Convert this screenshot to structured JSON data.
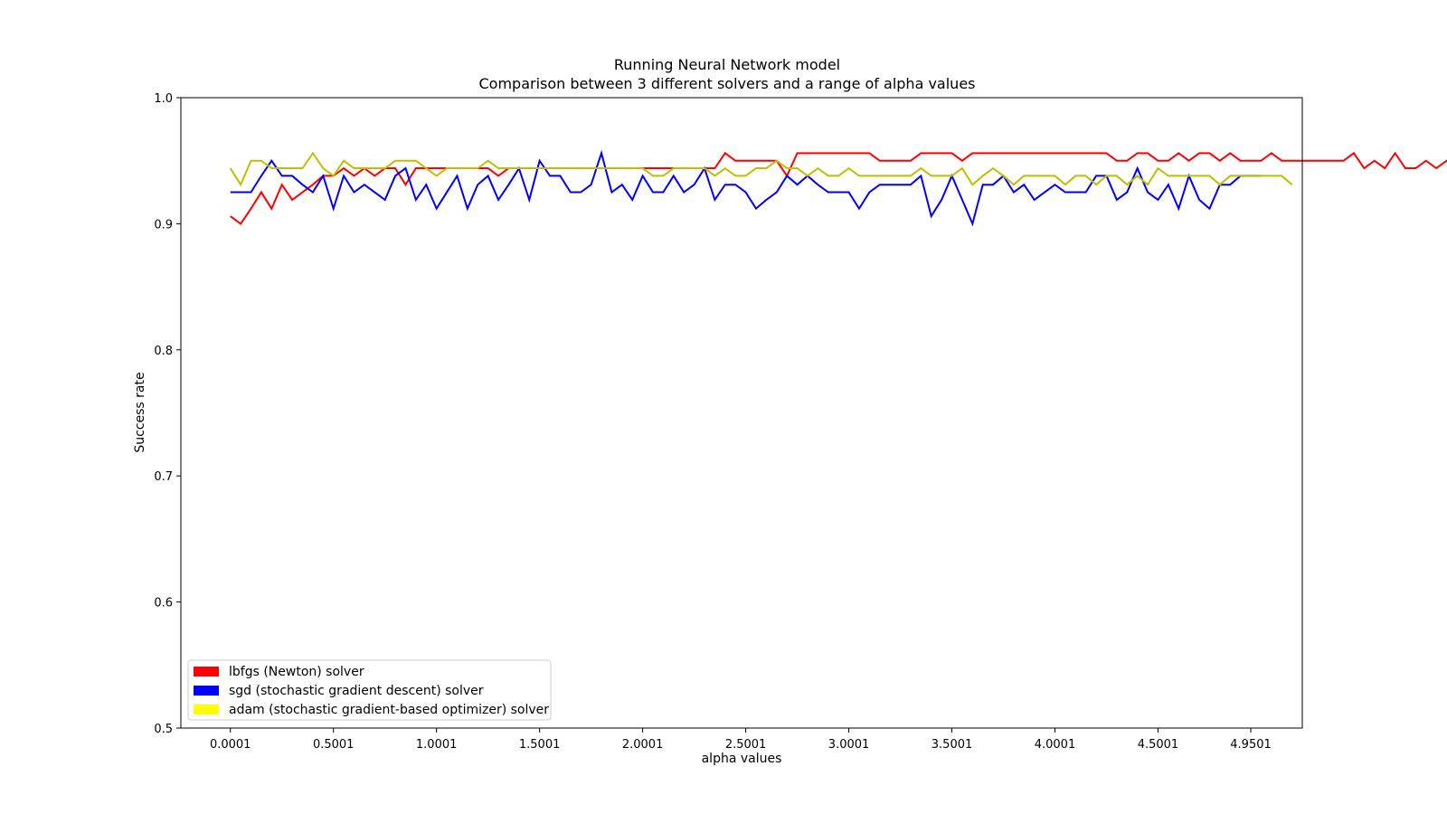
{
  "chart_data": {
    "type": "line",
    "title": "Running Neural Network model",
    "subtitle": "Comparison between 3 different solvers and a range of alpha values",
    "xlabel": "alpha values",
    "ylabel": "Success rate",
    "xlim": [
      -0.24,
      5.2
    ],
    "ylim": [
      0.5,
      1.0
    ],
    "xticks": [
      0.0001,
      0.5001,
      1.0001,
      1.5001,
      2.0001,
      2.5001,
      3.0001,
      3.5001,
      4.0001,
      4.5001,
      4.9501
    ],
    "xtick_labels": [
      "0.0001",
      "0.5001",
      "1.0001",
      "1.5001",
      "2.0001",
      "2.5001",
      "3.0001",
      "3.5001",
      "4.0001",
      "4.5001",
      "4.9501"
    ],
    "yticks": [
      0.5,
      0.6,
      0.7,
      0.8,
      0.9,
      1.0
    ],
    "ytick_labels": [
      "0.5",
      "0.6",
      "0.7",
      "0.8",
      "0.9",
      "1.0"
    ],
    "grid": false,
    "legend_position": "lower-left",
    "x_start": 0.0001,
    "x_step": 0.05,
    "series": [
      {
        "name": "lbfgs (Newton) solver",
        "color": "#ff0000",
        "values": [
          0.906,
          0.9,
          0.912,
          0.925,
          0.912,
          0.931,
          0.919,
          0.925,
          0.931,
          0.938,
          0.938,
          0.944,
          0.938,
          0.944,
          0.938,
          0.944,
          0.944,
          0.931,
          0.944,
          0.944,
          0.944,
          0.944,
          0.944,
          0.944,
          0.944,
          0.944,
          0.938,
          0.944,
          0.944,
          0.944,
          0.944,
          0.944,
          0.944,
          0.944,
          0.944,
          0.944,
          0.944,
          0.944,
          0.944,
          0.944,
          0.944,
          0.944,
          0.944,
          0.944,
          0.944,
          0.944,
          0.944,
          0.944,
          0.956,
          0.95,
          0.95,
          0.95,
          0.95,
          0.95,
          0.938,
          0.956,
          0.956,
          0.956,
          0.956,
          0.956,
          0.956,
          0.956,
          0.956,
          0.95,
          0.95,
          0.95,
          0.95,
          0.956,
          0.956,
          0.956,
          0.956,
          0.95,
          0.956,
          0.956,
          0.956,
          0.956,
          0.956,
          0.956,
          0.956,
          0.956,
          0.956,
          0.956,
          0.956,
          0.956,
          0.956,
          0.956,
          0.95,
          0.95,
          0.956,
          0.956,
          0.95,
          0.95,
          0.956,
          0.95,
          0.956,
          0.956,
          0.95,
          0.956,
          0.95,
          0.95,
          0.95,
          0.956,
          0.95,
          0.95,
          0.95,
          0.95,
          0.95,
          0.95,
          0.95,
          0.956,
          0.944,
          0.95,
          0.944,
          0.956,
          0.944,
          0.944,
          0.95,
          0.944,
          0.95,
          0.944,
          0.95
        ]
      },
      {
        "name": "sgd (stochastic gradient descent) solver",
        "color": "#0000ff",
        "values": [
          0.925,
          0.925,
          0.925,
          0.938,
          0.95,
          0.938,
          0.938,
          0.931,
          0.925,
          0.938,
          0.912,
          0.938,
          0.925,
          0.931,
          0.925,
          0.919,
          0.938,
          0.944,
          0.919,
          0.931,
          0.912,
          0.925,
          0.938,
          0.912,
          0.931,
          0.938,
          0.919,
          0.931,
          0.944,
          0.919,
          0.95,
          0.938,
          0.938,
          0.925,
          0.925,
          0.931,
          0.956,
          0.925,
          0.931,
          0.919,
          0.938,
          0.925,
          0.925,
          0.938,
          0.925,
          0.931,
          0.944,
          0.919,
          0.931,
          0.931,
          0.925,
          0.912,
          0.919,
          0.925,
          0.938,
          0.931,
          0.938,
          0.931,
          0.925,
          0.925,
          0.925,
          0.912,
          0.925,
          0.931,
          0.931,
          0.931,
          0.931,
          0.938,
          0.906,
          0.919,
          0.938,
          0.919,
          0.9,
          0.931,
          0.931,
          0.938,
          0.925,
          0.931,
          0.919,
          0.925,
          0.931,
          0.925,
          0.925,
          0.925,
          0.938,
          0.938,
          0.919,
          0.925,
          0.944,
          0.925,
          0.919,
          0.931,
          0.912,
          0.938,
          0.919,
          0.912,
          0.931,
          0.931,
          0.938,
          0.938,
          0.938
        ]
      },
      {
        "name": "adam (stochastic gradient-based optimizer) solver",
        "color": "#bfbf00",
        "legend_color": "#ffff00",
        "values": [
          0.944,
          0.931,
          0.95,
          0.95,
          0.944,
          0.944,
          0.944,
          0.944,
          0.956,
          0.944,
          0.938,
          0.95,
          0.944,
          0.944,
          0.944,
          0.944,
          0.95,
          0.95,
          0.95,
          0.944,
          0.938,
          0.944,
          0.944,
          0.944,
          0.944,
          0.95,
          0.944,
          0.944,
          0.944,
          0.944,
          0.944,
          0.944,
          0.944,
          0.944,
          0.944,
          0.944,
          0.944,
          0.944,
          0.944,
          0.944,
          0.944,
          0.938,
          0.938,
          0.944,
          0.944,
          0.944,
          0.944,
          0.938,
          0.944,
          0.938,
          0.938,
          0.944,
          0.944,
          0.95,
          0.944,
          0.944,
          0.938,
          0.944,
          0.938,
          0.938,
          0.944,
          0.938,
          0.938,
          0.938,
          0.938,
          0.938,
          0.938,
          0.944,
          0.938,
          0.938,
          0.938,
          0.944,
          0.931,
          0.938,
          0.944,
          0.938,
          0.931,
          0.938,
          0.938,
          0.938,
          0.938,
          0.931,
          0.938,
          0.938,
          0.931,
          0.938,
          0.938,
          0.931,
          0.938,
          0.931,
          0.944,
          0.938,
          0.938,
          0.938,
          0.938,
          0.938,
          0.931,
          0.938,
          0.938,
          0.938,
          0.938,
          0.938,
          0.938,
          0.931
        ]
      }
    ]
  }
}
